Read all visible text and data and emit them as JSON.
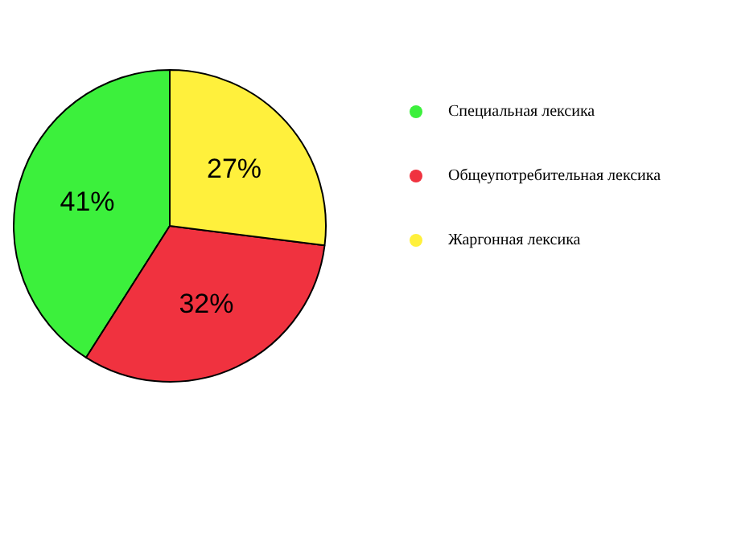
{
  "chart_data": {
    "type": "pie",
    "categories": [
      "Специальная лексика",
      "Общеупотребительная лексика",
      "Жаргонная лексика"
    ],
    "values": [
      41,
      32,
      27
    ],
    "colors": [
      "#3cf03c",
      "#f0323f",
      "#fff03c"
    ],
    "value_labels": [
      "41%",
      "32%",
      "27%"
    ],
    "legend": "right"
  }
}
